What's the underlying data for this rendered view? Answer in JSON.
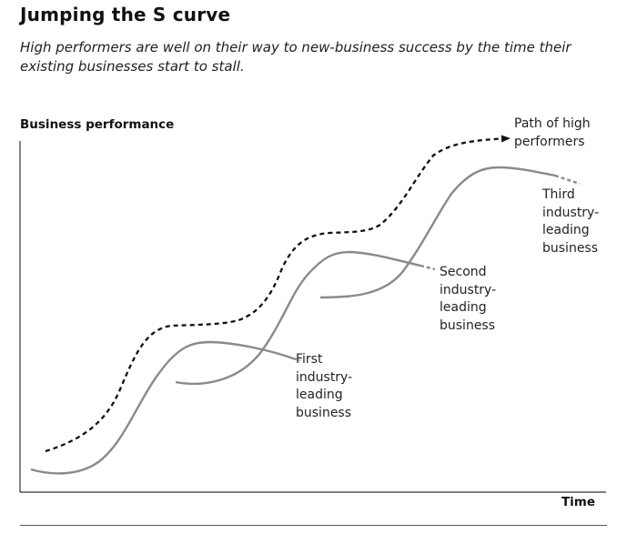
{
  "title": "Jumping the S curve",
  "subtitle": "High performers are well on their way to new-business success by the time their existing businesses start to stall.",
  "axes": {
    "y_label": "Business performance",
    "x_label": "Time"
  },
  "labels": {
    "path": [
      "Path of high",
      "performers"
    ],
    "third": [
      "Third",
      "industry-",
      "leading",
      "business"
    ],
    "second": [
      "Second",
      "industry-",
      "leading",
      "business"
    ],
    "first": [
      "First",
      "industry-",
      "leading",
      "business"
    ]
  },
  "colors": {
    "curve": "#8a8a8a",
    "path": "#111111",
    "axis": "#333333"
  }
}
